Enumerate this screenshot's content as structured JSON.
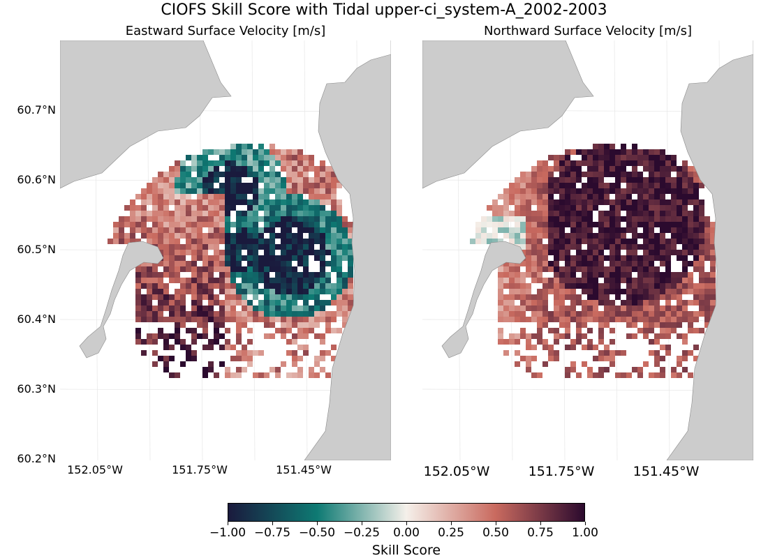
{
  "figure": {
    "title": "CIOFS Skill Score with Tidal upper-ci_system-A_2002-2003"
  },
  "chart_data": [
    {
      "type": "heatmap",
      "title": "Eastward Surface Velocity [m/s]",
      "x_ticks": [
        "152.05°W",
        "151.75°W",
        "151.45°W"
      ],
      "y_ticks": [
        "60.7°N",
        "60.6°N",
        "60.5°N",
        "60.4°N",
        "60.3°N",
        "60.2°N"
      ],
      "lon_range": [
        -152.15,
        -151.2
      ],
      "lat_range": [
        60.2,
        60.8
      ],
      "colorbar": "Skill Score",
      "vlim": [
        -1.0,
        1.0
      ],
      "pattern": "mixed"
    },
    {
      "type": "heatmap",
      "title": "Northward Surface Velocity [m/s]",
      "x_ticks": [
        "152.05°W",
        "151.75°W",
        "151.45°W"
      ],
      "lon_range": [
        -152.15,
        -151.2
      ],
      "lat_range": [
        60.2,
        60.8
      ],
      "colorbar": "Skill Score",
      "vlim": [
        -1.0,
        1.0
      ],
      "pattern": "mostly-positive"
    }
  ],
  "colorbar": {
    "label": "Skill Score",
    "ticks": [
      "−1.00",
      "−0.75",
      "−0.50",
      "−0.25",
      "0.00",
      "0.25",
      "0.50",
      "0.75",
      "1.00"
    ],
    "colors": [
      "#1a1a3d",
      "#0e7a73",
      "#f5f0ea",
      "#c96a5f",
      "#2b0a2e"
    ]
  },
  "land_color": "#cccccc"
}
